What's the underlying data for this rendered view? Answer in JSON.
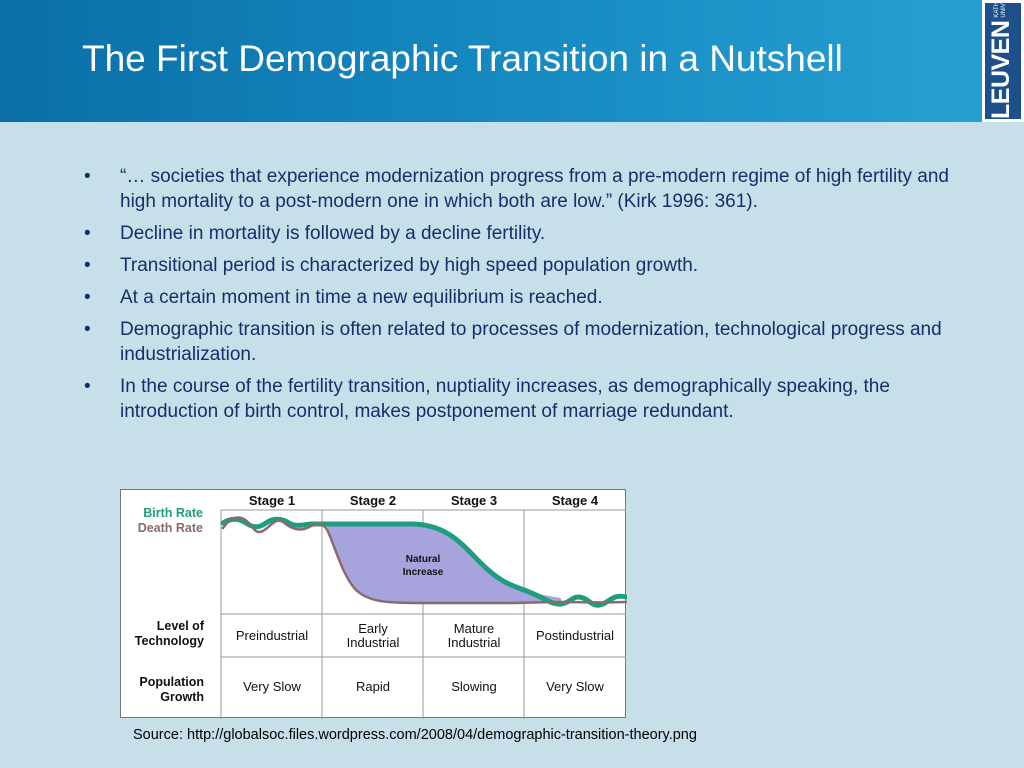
{
  "slide": {
    "title": "The First Demographic Transition in a Nutshell"
  },
  "logo": {
    "main": "LEUVEN",
    "sub": "KATHOLIEKE UNIVERSITEIT"
  },
  "bullets": [
    {
      "marker": "•",
      "text": "“… societies that experience modernization progress from a pre-modern regime of high fertility and high mortality to a post-modern one in which both are low.” (Kirk 1996: 361)."
    },
    {
      "marker": "•",
      "text": "Decline in mortality is followed by a decline fertility."
    },
    {
      "marker": "•",
      "text": "Transitional period is characterized by high speed population growth."
    },
    {
      "marker": "•",
      "text": "At a certain moment in time a new equilibrium is reached."
    },
    {
      "marker": "•",
      "text": "Demographic transition is often related to processes of modernization, technological progress and industrialization."
    },
    {
      "marker": "•",
      "text": "In the course of the fertility transition, nuptiality increases, as demographically speaking, the introduction of  birth control, makes postponement of marriage redundant."
    }
  ],
  "figure": {
    "stages": [
      "Stage 1",
      "Stage 2",
      "Stage 3",
      "Stage 4"
    ],
    "legend": {
      "birth_rate": "Birth Rate",
      "death_rate": "Death Rate"
    },
    "natural_increase": [
      "Natural",
      "Increase"
    ],
    "row_labels": {
      "technology": [
        "Level of",
        "Technology"
      ],
      "growth": [
        "Population",
        "Growth"
      ]
    },
    "technology": [
      [
        "Preindustrial"
      ],
      [
        "Early",
        "Industrial"
      ],
      [
        "Mature",
        "Industrial"
      ],
      [
        "Postindustrial"
      ]
    ],
    "growth": [
      "Very Slow",
      "Rapid",
      "Slowing",
      "Very Slow"
    ],
    "colors": {
      "birth": "#1f9e7f",
      "death": "#8a6b6b",
      "increase": "#a7a3dc"
    }
  },
  "source": "Source: http://globalsoc.files.wordpress.com/2008/04/demographic-transition-theory.png"
}
